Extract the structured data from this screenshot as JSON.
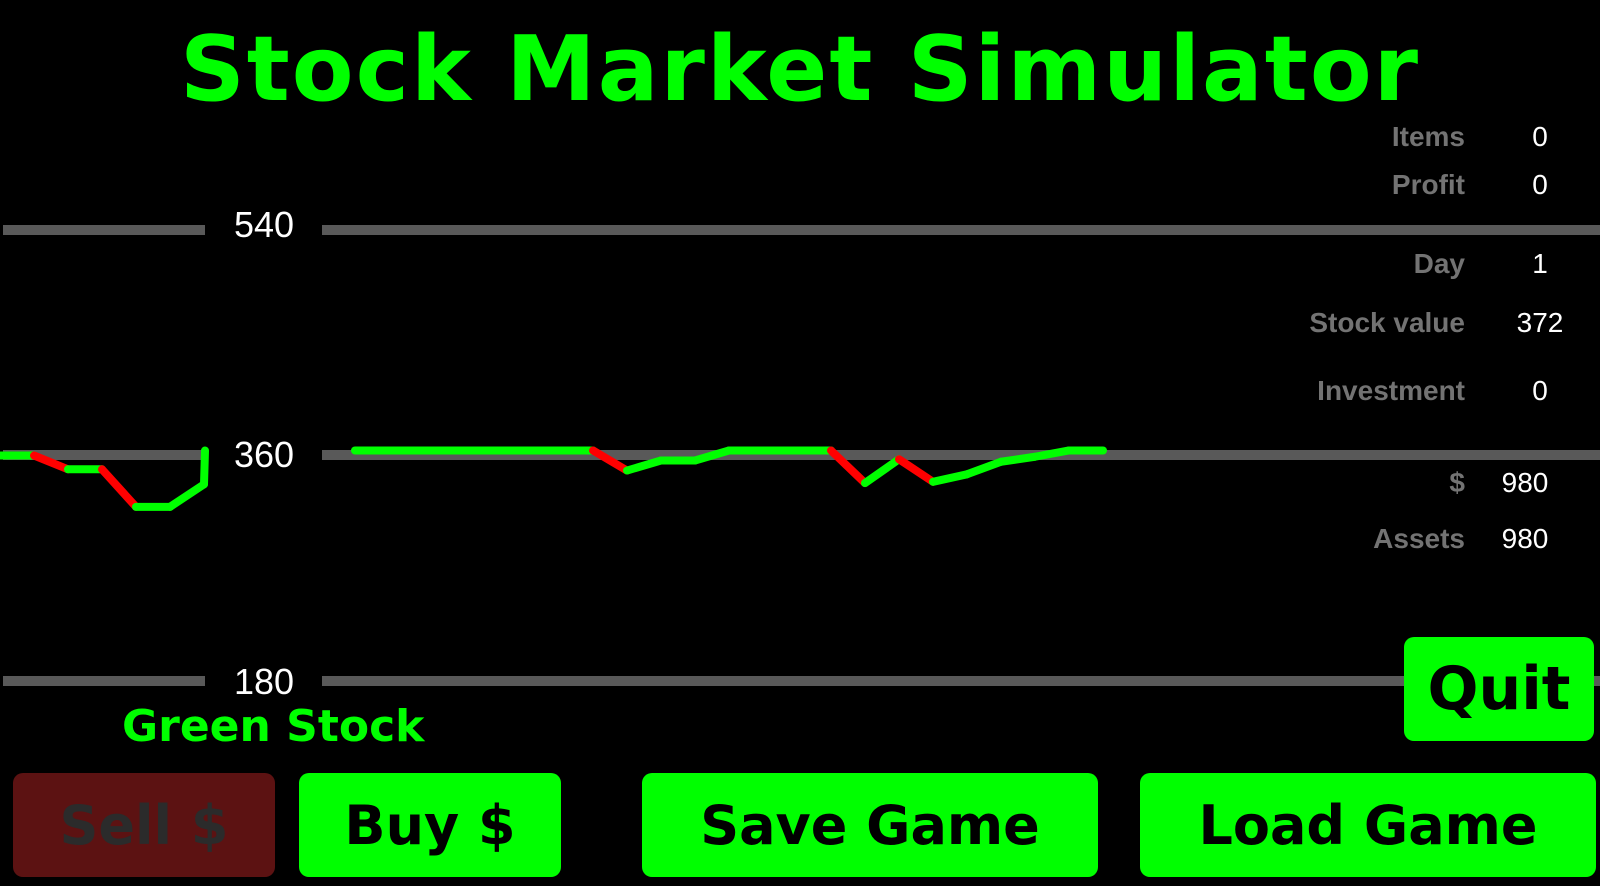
{
  "title": "Stock Market Simulator",
  "stats": {
    "items_label": "Items",
    "items_value": "0",
    "profit_label": "Profit",
    "profit_value": "0",
    "day_label": "Day",
    "day_value": "1",
    "stock_value_label": "Stock value",
    "stock_value_value": "372",
    "investment_label": "Investment",
    "investment_value": "0",
    "cash_label": "$",
    "cash_value": "980",
    "assets_label": "Assets",
    "assets_value": "980"
  },
  "stock_name": "Green Stock",
  "buttons": {
    "sell": "Sell $",
    "buy": "Buy $",
    "save": "Save Game",
    "load": "Load Game",
    "quit": "Quit"
  },
  "colors": {
    "accent": "#00FF00",
    "down": "#FF0000",
    "gridline": "#595959",
    "disabled_button": "#5c1212",
    "label_gray": "#737373"
  },
  "chart_data": {
    "type": "line",
    "y_ticks": [
      "540",
      "360",
      "180"
    ],
    "ylim": [
      180,
      540
    ],
    "grid": true,
    "up_color": "#00FF00",
    "down_color": "#FF0000",
    "values": [
      360,
      360,
      349,
      349,
      319,
      319,
      337,
      364,
      364,
      364,
      364,
      364,
      364,
      364,
      364,
      348,
      356,
      356,
      364,
      364,
      364,
      364,
      338,
      357,
      339,
      345,
      355,
      359,
      364,
      364
    ],
    "x": [
      0,
      1,
      2,
      3,
      4,
      5,
      6,
      7,
      8,
      9,
      10,
      11,
      12,
      13,
      14,
      15,
      16,
      17,
      18,
      19,
      20,
      21,
      22,
      23,
      24,
      25,
      26,
      27,
      28,
      29
    ]
  }
}
